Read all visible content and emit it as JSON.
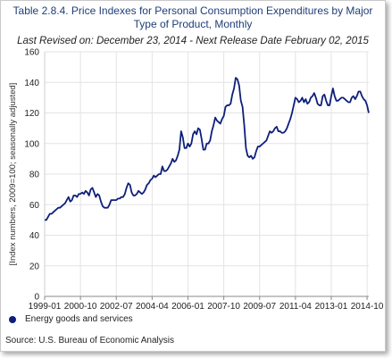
{
  "header": {
    "title": "Table 2.8.4. Price Indexes for Personal Consumption Expenditures by Major Type of Product, Monthly",
    "subtitle": "Last Revised on: December 23, 2014 - Next Release Date February 02, 2015"
  },
  "source": "Source: U.S. Bureau of Economic  Analysis",
  "colors": {
    "series": "#0d1f7a",
    "grid": "#e3e3e3",
    "title": "#1f3e7a"
  },
  "chart_data": {
    "type": "line",
    "title": "Table 2.8.4. Price Indexes for Personal Consumption Expenditures by Major Type of Product, Monthly",
    "xlabel": "",
    "ylabel": "[Index numbers, 2009=100; seasonally adjusted]",
    "ylim": [
      0,
      160
    ],
    "yticks": [
      0,
      20,
      40,
      60,
      80,
      100,
      120,
      140,
      160
    ],
    "xlim": [
      "1999-01",
      "2014-11"
    ],
    "xticks": [
      "1999-01",
      "2000-10",
      "2002-07",
      "2004-04",
      "2006-01",
      "2007-10",
      "2009-07",
      "2011-04",
      "2013-01",
      "2014-10"
    ],
    "grid": true,
    "legend": "bottom-left",
    "series": [
      {
        "name": "Energy goods and services",
        "color": "#0d1f7a",
        "x": [
          "1999-01",
          "1999-02",
          "1999-03",
          "1999-04",
          "1999-05",
          "1999-06",
          "1999-07",
          "1999-08",
          "1999-09",
          "1999-10",
          "1999-11",
          "1999-12",
          "2000-01",
          "2000-02",
          "2000-03",
          "2000-04",
          "2000-05",
          "2000-06",
          "2000-07",
          "2000-08",
          "2000-09",
          "2000-10",
          "2000-11",
          "2000-12",
          "2001-01",
          "2001-02",
          "2001-03",
          "2001-04",
          "2001-05",
          "2001-06",
          "2001-07",
          "2001-08",
          "2001-09",
          "2001-10",
          "2001-11",
          "2001-12",
          "2002-01",
          "2002-02",
          "2002-03",
          "2002-04",
          "2002-05",
          "2002-06",
          "2002-07",
          "2002-08",
          "2002-09",
          "2002-10",
          "2002-11",
          "2002-12",
          "2003-01",
          "2003-02",
          "2003-03",
          "2003-04",
          "2003-05",
          "2003-06",
          "2003-07",
          "2003-08",
          "2003-09",
          "2003-10",
          "2003-11",
          "2003-12",
          "2004-01",
          "2004-02",
          "2004-03",
          "2004-04",
          "2004-05",
          "2004-06",
          "2004-07",
          "2004-08",
          "2004-09",
          "2004-10",
          "2004-11",
          "2004-12",
          "2005-01",
          "2005-02",
          "2005-03",
          "2005-04",
          "2005-05",
          "2005-06",
          "2005-07",
          "2005-08",
          "2005-09",
          "2005-10",
          "2005-11",
          "2005-12",
          "2006-01",
          "2006-02",
          "2006-03",
          "2006-04",
          "2006-05",
          "2006-06",
          "2006-07",
          "2006-08",
          "2006-09",
          "2006-10",
          "2006-11",
          "2006-12",
          "2007-01",
          "2007-02",
          "2007-03",
          "2007-04",
          "2007-05",
          "2007-06",
          "2007-07",
          "2007-08",
          "2007-09",
          "2007-10",
          "2007-11",
          "2007-12",
          "2008-01",
          "2008-02",
          "2008-03",
          "2008-04",
          "2008-05",
          "2008-06",
          "2008-07",
          "2008-08",
          "2008-09",
          "2008-10",
          "2008-11",
          "2008-12",
          "2009-01",
          "2009-02",
          "2009-03",
          "2009-04",
          "2009-05",
          "2009-06",
          "2009-07",
          "2009-08",
          "2009-09",
          "2009-10",
          "2009-11",
          "2009-12",
          "2010-01",
          "2010-02",
          "2010-03",
          "2010-04",
          "2010-05",
          "2010-06",
          "2010-07",
          "2010-08",
          "2010-09",
          "2010-10",
          "2010-11",
          "2010-12",
          "2011-01",
          "2011-02",
          "2011-03",
          "2011-04",
          "2011-05",
          "2011-06",
          "2011-07",
          "2011-08",
          "2011-09",
          "2011-10",
          "2011-11",
          "2011-12",
          "2012-01",
          "2012-02",
          "2012-03",
          "2012-04",
          "2012-05",
          "2012-06",
          "2012-07",
          "2012-08",
          "2012-09",
          "2012-10",
          "2012-11",
          "2012-12",
          "2013-01",
          "2013-02",
          "2013-03",
          "2013-04",
          "2013-05",
          "2013-06",
          "2013-07",
          "2013-08",
          "2013-09",
          "2013-10",
          "2013-11",
          "2013-12",
          "2014-01",
          "2014-02",
          "2014-03",
          "2014-04",
          "2014-05",
          "2014-06",
          "2014-07",
          "2014-08",
          "2014-09",
          "2014-10",
          "2014-11"
        ],
        "values": [
          50,
          50,
          52,
          54,
          54,
          55,
          56,
          57,
          58,
          58,
          59,
          60,
          61,
          63,
          65,
          62,
          63,
          66,
          66,
          65,
          67,
          67,
          68,
          67,
          69,
          68,
          66,
          70,
          71,
          68,
          65,
          67,
          66,
          62,
          59,
          58,
          58,
          58,
          60,
          63,
          63,
          63,
          63,
          64,
          64,
          65,
          65,
          67,
          71,
          74,
          73,
          68,
          66,
          66,
          67,
          69,
          68,
          67,
          68,
          70,
          73,
          74,
          76,
          77,
          79,
          78,
          79,
          80,
          80,
          85,
          82,
          82,
          83,
          85,
          87,
          90,
          88,
          89,
          92,
          96,
          108,
          104,
          97,
          97,
          100,
          98,
          100,
          106,
          108,
          106,
          110,
          109,
          103,
          96,
          96,
          100,
          100,
          102,
          108,
          112,
          117,
          115,
          114,
          113,
          116,
          118,
          124,
          125,
          125,
          126,
          132,
          136,
          143,
          142,
          138,
          128,
          124,
          112,
          97,
          92,
          91,
          92,
          90,
          91,
          95,
          98,
          98,
          99,
          100,
          101,
          102,
          105,
          108,
          107,
          108,
          110,
          111,
          108,
          108,
          107,
          107,
          108,
          110,
          113,
          116,
          120,
          125,
          130,
          129,
          127,
          128,
          130,
          127,
          129,
          126,
          127,
          130,
          131,
          133,
          130,
          126,
          125,
          125,
          131,
          132,
          128,
          125,
          125,
          131,
          136,
          131,
          128,
          128,
          129,
          130,
          130,
          129,
          128,
          127,
          127,
          130,
          131,
          129,
          131,
          134,
          134,
          131,
          129,
          128,
          125,
          120
        ]
      }
    ]
  }
}
